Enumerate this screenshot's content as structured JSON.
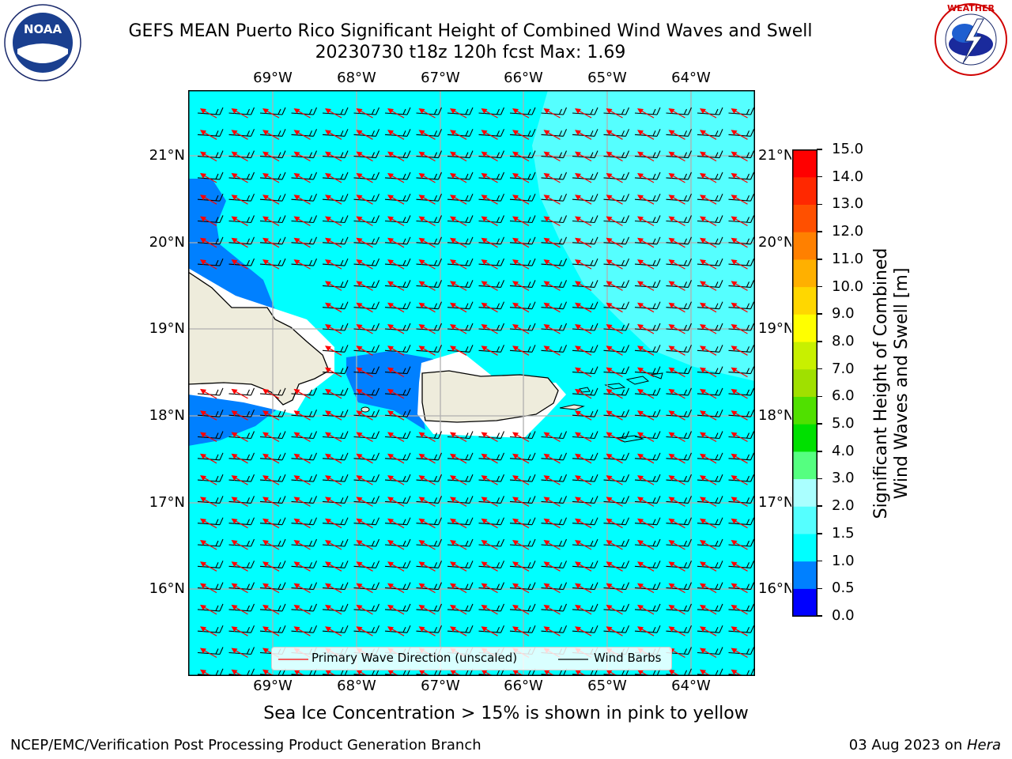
{
  "title": {
    "line1": "GEFS MEAN Puerto Rico Significant Height of Combined Wind Waves and Swell",
    "line2": "20230730 t18z 120h fcst   Max: 1.69"
  },
  "subcaption": "Sea Ice Concentration > 15% is shown in pink to yellow",
  "footer": {
    "left": "NCEP/EMC/Verification Post Processing Product Generation Branch",
    "right_prefix": "03 Aug 2023 on ",
    "right_machine": "Hera"
  },
  "logos": {
    "left": "noaa-logo",
    "right": "nws-logo"
  },
  "map": {
    "lon_labels": [
      "69°W",
      "68°W",
      "67°W",
      "66°W",
      "65°W",
      "64°W"
    ],
    "lat_labels": [
      "21°N",
      "20°N",
      "19°N",
      "18°N",
      "17°N",
      "16°N"
    ],
    "colors": {
      "sea": "#00ffff",
      "light_sea": "#55ffff",
      "deep": "#0080ff",
      "land": "#eeecdc",
      "barb": "#000000",
      "wave_arrow": "#ff0000"
    }
  },
  "legend": {
    "wave_label": "Primary Wave Direction (unscaled)",
    "barb_label": "Wind Barbs"
  },
  "colorbar": {
    "title_line1": "Significant Height of Combined",
    "title_line2": "Wind Waves and Swell [m]",
    "ticks": [
      "0.0",
      "0.5",
      "1.0",
      "1.5",
      "2.0",
      "3.0",
      "4.0",
      "5.0",
      "6.0",
      "7.0",
      "8.0",
      "9.0",
      "10.0",
      "11.0",
      "12.0",
      "13.0",
      "14.0",
      "15.0"
    ],
    "colors": [
      "#0000ff",
      "#0080ff",
      "#00ffff",
      "#55ffff",
      "#aaffff",
      "#55ff80",
      "#00e000",
      "#50e000",
      "#a0e000",
      "#c8f000",
      "#ffff00",
      "#ffd700",
      "#ffb000",
      "#ff8000",
      "#ff5000",
      "#ff2800",
      "#ff0000"
    ]
  }
}
